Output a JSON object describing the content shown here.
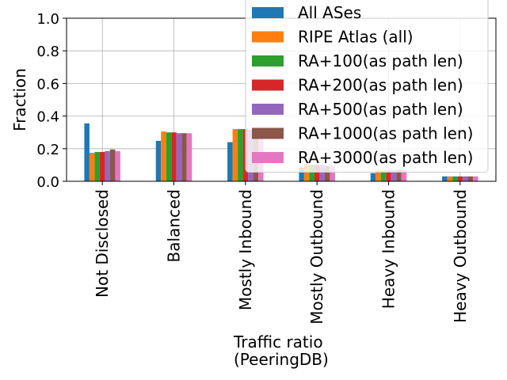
{
  "chart_data": {
    "type": "bar",
    "xlabel": [
      "Traffic ratio",
      "(PeeringDB)"
    ],
    "ylabel": "Fraction",
    "ylim": [
      0,
      1.0
    ],
    "yticks": [
      "0.0",
      "0.2",
      "0.4",
      "0.6",
      "0.8",
      "1.0"
    ],
    "grid": true,
    "legend_position": "top-right",
    "categories": [
      "Not Disclosed",
      "Balanced",
      "Mostly Inbound",
      "Mostly Outbound",
      "Heavy Inbound",
      "Heavy Outbound"
    ],
    "series": [
      {
        "name": "All ASes",
        "color": "#1f77b4",
        "values": [
          0.355,
          0.248,
          0.24,
          0.085,
          0.05,
          0.03
        ]
      },
      {
        "name": "RIPE Atlas (all)",
        "color": "#ff7f0e",
        "values": [
          0.175,
          0.305,
          0.32,
          0.105,
          0.065,
          0.03
        ]
      },
      {
        "name": "RA+100(as path len)",
        "color": "#2ca02c",
        "values": [
          0.18,
          0.3,
          0.32,
          0.1,
          0.065,
          0.03
        ]
      },
      {
        "name": "RA+200(as path len)",
        "color": "#d62728",
        "values": [
          0.18,
          0.3,
          0.32,
          0.1,
          0.065,
          0.03
        ]
      },
      {
        "name": "RA+500(as path len)",
        "color": "#9467bd",
        "values": [
          0.185,
          0.295,
          0.315,
          0.1,
          0.065,
          0.03
        ]
      },
      {
        "name": "RA+1000(as path len)",
        "color": "#8c564b",
        "values": [
          0.195,
          0.295,
          0.3,
          0.095,
          0.07,
          0.03
        ]
      },
      {
        "name": "RA+3000(as path len)",
        "color": "#e377c2",
        "values": [
          0.185,
          0.295,
          0.3,
          0.095,
          0.07,
          0.03
        ]
      }
    ]
  }
}
